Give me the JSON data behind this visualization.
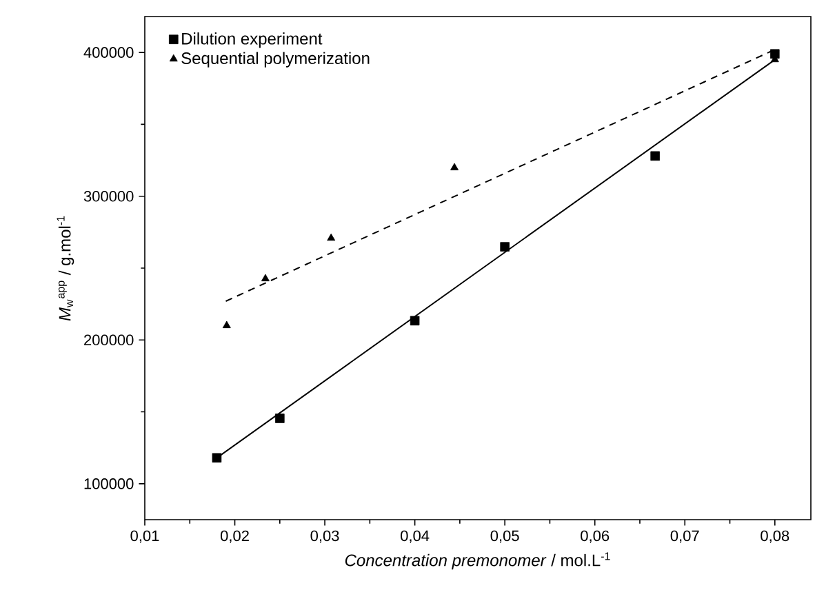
{
  "chart_data": {
    "type": "scatter",
    "xlabel": "*Concentration premonomer* / mol.L$^{-1}$",
    "ylabel": "*M*$_{w}$$^{app}$ / g.mol$^{-1}$",
    "xlim": [
      0.01,
      0.084
    ],
    "ylim": [
      75000,
      425000
    ],
    "xticks": [
      {
        "value": 0.01,
        "label": "0,01"
      },
      {
        "value": 0.02,
        "label": "0,02"
      },
      {
        "value": 0.03,
        "label": "0,03"
      },
      {
        "value": 0.04,
        "label": "0,04"
      },
      {
        "value": 0.05,
        "label": "0,05"
      },
      {
        "value": 0.06,
        "label": "0,06"
      },
      {
        "value": 0.07,
        "label": "0,07"
      },
      {
        "value": 0.08,
        "label": "0,08"
      }
    ],
    "yticks": [
      100000,
      200000,
      300000,
      400000
    ],
    "grid": false,
    "legend": "top left",
    "series": [
      {
        "name": "Dilution experiment",
        "color": "#000000",
        "marker": "square",
        "x": [
          0.018,
          0.025,
          0.04,
          0.05,
          0.0667,
          0.08
        ],
        "values": [
          118000,
          145500,
          213400,
          264800,
          328000,
          399000
        ]
      },
      {
        "name": "Sequential polymerization",
        "color": "#000000",
        "marker": "triangle",
        "x": [
          0.0191,
          0.0234,
          0.0307,
          0.0444,
          0.08
        ],
        "values": [
          210000,
          242600,
          270800,
          319800,
          395000
        ]
      },
      {
        "type": "line",
        "color": "#000000",
        "marker": "none",
        "line_style": "solid",
        "x": [
          0.018,
          0.08
        ],
        "values": [
          118000,
          395000
        ]
      },
      {
        "type": "line",
        "color": "#000000",
        "marker": "none",
        "line_style": "dashed",
        "x": [
          0.019,
          0.08
        ],
        "values": [
          227000,
          402000
        ]
      }
    ]
  }
}
